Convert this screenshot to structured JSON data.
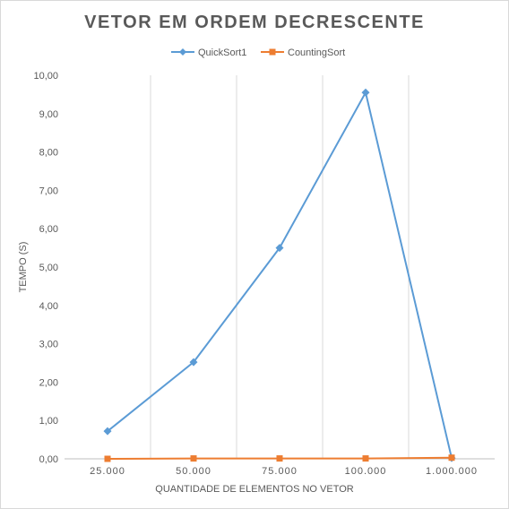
{
  "chart_data": {
    "type": "line",
    "title": "VETOR EM ORDEM DECRESCENTE",
    "xlabel": "QUANTIDADE DE ELEMENTOS NO VETOR",
    "ylabel": "TEMPO (S)",
    "categories": [
      "25.000",
      "50.000",
      "75.000",
      "100.000",
      "1.000.000"
    ],
    "ylim": [
      0,
      10
    ],
    "yticks": [
      "0,00",
      "1,00",
      "2,00",
      "3,00",
      "4,00",
      "5,00",
      "6,00",
      "7,00",
      "8,00",
      "9,00",
      "10,00"
    ],
    "grid": "vertical",
    "legend_position": "top",
    "series": [
      {
        "name": "QuickSort1",
        "color": "#5b9bd5",
        "marker": "diamond",
        "values": [
          0.72,
          2.52,
          5.5,
          9.55,
          0.02
        ]
      },
      {
        "name": "CountingSort",
        "color": "#ed7d31",
        "marker": "square",
        "values": [
          0.0,
          0.01,
          0.01,
          0.01,
          0.03
        ]
      }
    ]
  }
}
